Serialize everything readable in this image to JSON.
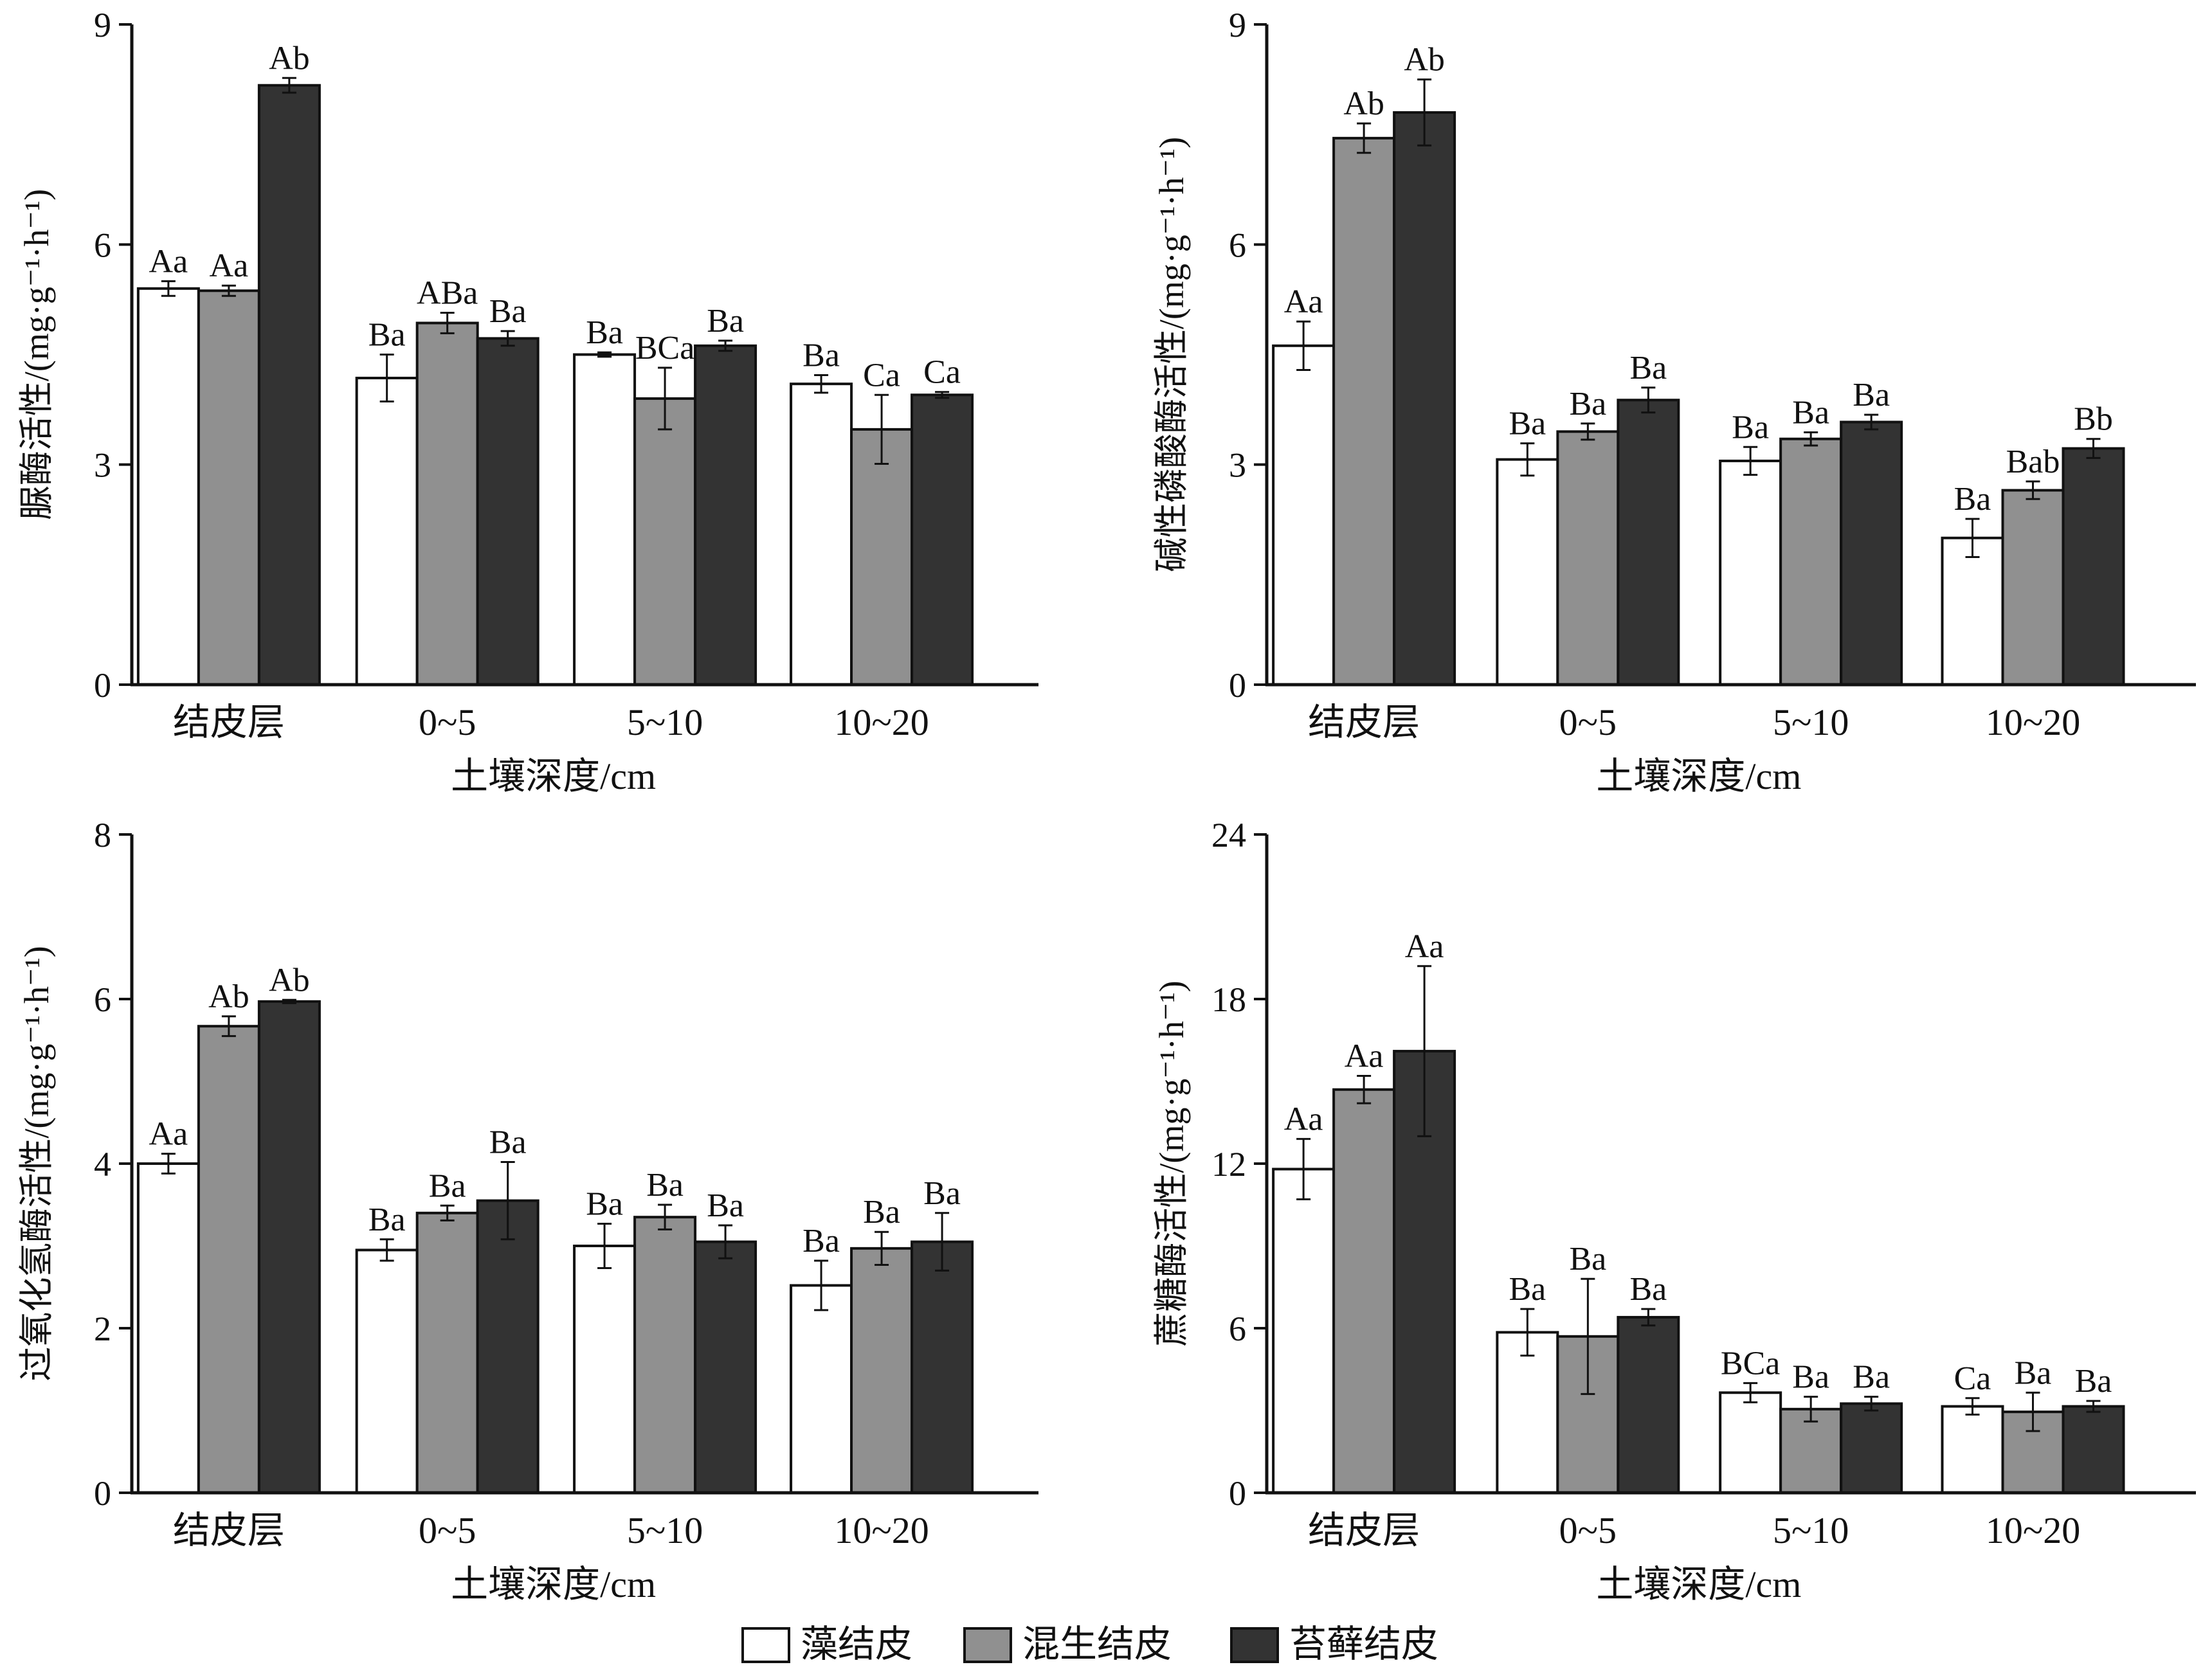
{
  "colors": {
    "series": [
      "#ffffff",
      "#909090",
      "#333333"
    ],
    "axis": "#111111"
  },
  "legend": {
    "items": [
      "藻结皮",
      "混生结皮",
      "苔藓结皮"
    ]
  },
  "chart_data": [
    {
      "type": "bar",
      "categories": [
        "结皮层",
        "0~5",
        "5~10",
        "10~20"
      ],
      "xlabel": "土壤深度/cm",
      "ylabel": "脲酶活性/(mg·g⁻¹·h⁻¹)",
      "ylim": [
        0,
        9
      ],
      "yticks": [
        0,
        3,
        6,
        9
      ],
      "series": [
        {
          "name": "藻结皮",
          "values": [
            5.4,
            4.18,
            4.5,
            4.1
          ],
          "errors": [
            0.1,
            0.32,
            0.03,
            0.12
          ],
          "labels": [
            "Aa",
            "Ba",
            "Ba",
            "Ba"
          ]
        },
        {
          "name": "混生结皮",
          "values": [
            5.37,
            4.93,
            3.9,
            3.48
          ],
          "errors": [
            0.07,
            0.14,
            0.42,
            0.47
          ],
          "labels": [
            "Aa",
            "ABa",
            "BCa",
            "Ca"
          ]
        },
        {
          "name": "苔藓结皮",
          "values": [
            8.17,
            4.72,
            4.62,
            3.95
          ],
          "errors": [
            0.1,
            0.1,
            0.07,
            0.04
          ],
          "labels": [
            "Ab",
            "Ba",
            "Ba",
            "Ca"
          ]
        }
      ]
    },
    {
      "type": "bar",
      "categories": [
        "结皮层",
        "0~5",
        "5~10",
        "10~20"
      ],
      "xlabel": "土壤深度/cm",
      "ylabel": "碱性磷酸酶活性/(mg·g⁻¹·h⁻¹)",
      "ylim": [
        0,
        9
      ],
      "yticks": [
        0,
        3,
        6,
        9
      ],
      "series": [
        {
          "name": "藻结皮",
          "values": [
            4.62,
            3.07,
            3.05,
            2.0
          ],
          "errors": [
            0.33,
            0.22,
            0.19,
            0.26
          ],
          "labels": [
            "Aa",
            "Ba",
            "Ba",
            "Ba"
          ]
        },
        {
          "name": "混生结皮",
          "values": [
            7.45,
            3.45,
            3.35,
            2.65
          ],
          "errors": [
            0.2,
            0.11,
            0.09,
            0.12
          ],
          "labels": [
            "Ab",
            "Ba",
            "Ba",
            "Bab"
          ]
        },
        {
          "name": "苔藓结皮",
          "values": [
            7.8,
            3.88,
            3.58,
            3.22
          ],
          "errors": [
            0.45,
            0.17,
            0.1,
            0.13
          ],
          "labels": [
            "Ab",
            "Ba",
            "Ba",
            "Bb"
          ]
        }
      ]
    },
    {
      "type": "bar",
      "categories": [
        "结皮层",
        "0~5",
        "5~10",
        "10~20"
      ],
      "xlabel": "土壤深度/cm",
      "ylabel": "过氧化氢酶活性/(mg·g⁻¹·h⁻¹)",
      "ylim": [
        0,
        8
      ],
      "yticks": [
        0,
        2,
        4,
        6,
        8
      ],
      "series": [
        {
          "name": "藻结皮",
          "values": [
            4.0,
            2.95,
            3.0,
            2.52
          ],
          "errors": [
            0.12,
            0.13,
            0.27,
            0.3
          ],
          "labels": [
            "Aa",
            "Ba",
            "Ba",
            "Ba"
          ]
        },
        {
          "name": "混生结皮",
          "values": [
            5.67,
            3.4,
            3.35,
            2.97
          ],
          "errors": [
            0.12,
            0.09,
            0.15,
            0.2
          ],
          "labels": [
            "Ab",
            "Ba",
            "Ba",
            "Ba"
          ]
        },
        {
          "name": "苔藓结皮",
          "values": [
            5.97,
            3.55,
            3.05,
            3.05
          ],
          "errors": [
            0.02,
            0.47,
            0.2,
            0.35
          ],
          "labels": [
            "Ab",
            "Ba",
            "Ba",
            "Ba"
          ]
        }
      ]
    },
    {
      "type": "bar",
      "categories": [
        "结皮层",
        "0~5",
        "5~10",
        "10~20"
      ],
      "xlabel": "土壤深度/cm",
      "ylabel": "蔗糖酶活性/(mg·g⁻¹·h⁻¹)",
      "ylim": [
        0,
        24
      ],
      "yticks": [
        0,
        6,
        12,
        18,
        24
      ],
      "series": [
        {
          "name": "藻结皮",
          "values": [
            11.8,
            5.85,
            3.65,
            3.15
          ],
          "errors": [
            1.1,
            0.85,
            0.35,
            0.3
          ],
          "labels": [
            "Aa",
            "Ba",
            "BCa",
            "Ca"
          ]
        },
        {
          "name": "混生结皮",
          "values": [
            14.7,
            5.7,
            3.05,
            2.95
          ],
          "errors": [
            0.5,
            2.1,
            0.45,
            0.7
          ],
          "labels": [
            "Aa",
            "Ba",
            "Ba",
            "Ba"
          ]
        },
        {
          "name": "苔藓结皮",
          "values": [
            16.1,
            6.4,
            3.25,
            3.15
          ],
          "errors": [
            3.1,
            0.3,
            0.25,
            0.2
          ],
          "labels": [
            "Aa",
            "Ba",
            "Ba",
            "Ba"
          ]
        }
      ]
    }
  ]
}
